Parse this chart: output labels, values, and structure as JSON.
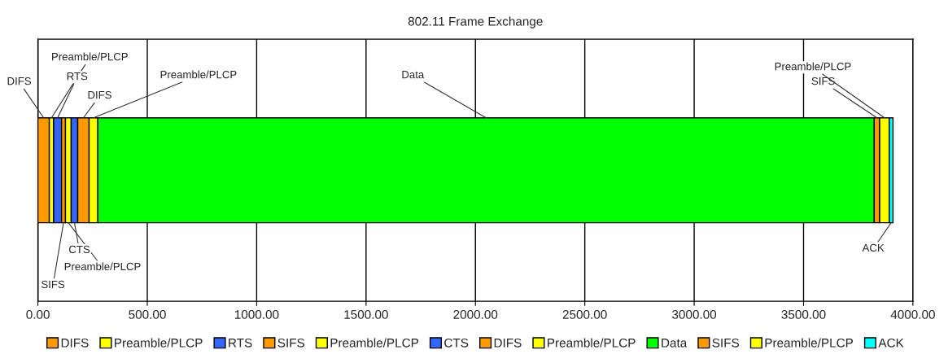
{
  "chart_data": {
    "type": "bar",
    "title": "802.11 Frame Exchange",
    "orientation": "horizontal",
    "stacked": true,
    "categories": [
      null
    ],
    "series": [
      {
        "name": "DIFS",
        "color": "#ff9900",
        "values": [
          52
        ]
      },
      {
        "name": "Preamble/PLCP",
        "color": "#ffff00",
        "values": [
          20
        ]
      },
      {
        "name": "RTS",
        "color": "#3366ff",
        "values": [
          36
        ]
      },
      {
        "name": "SIFS",
        "color": "#ff9900",
        "values": [
          18
        ]
      },
      {
        "name": "Preamble/PLCP",
        "color": "#ffff00",
        "values": [
          26
        ]
      },
      {
        "name": "CTS",
        "color": "#3366ff",
        "values": [
          30
        ]
      },
      {
        "name": "DIFS",
        "color": "#ff9900",
        "values": [
          52
        ]
      },
      {
        "name": "Preamble/PLCP",
        "color": "#ffff00",
        "values": [
          40
        ]
      },
      {
        "name": "Data",
        "color": "#00ff00",
        "values": [
          3549
        ]
      },
      {
        "name": "SIFS",
        "color": "#ff9900",
        "values": [
          25
        ]
      },
      {
        "name": "Preamble/PLCP",
        "color": "#ffff00",
        "values": [
          44
        ]
      },
      {
        "name": "ACK",
        "color": "#00ffff",
        "values": [
          17
        ]
      }
    ],
    "xlim": [
      0,
      4000
    ],
    "xticks": [
      {
        "value": 0,
        "label": "0.00"
      },
      {
        "value": 500,
        "label": "500.00"
      },
      {
        "value": 1000,
        "label": "1000.00"
      },
      {
        "value": 1500,
        "label": "1500.00"
      },
      {
        "value": 2000,
        "label": "2000.00"
      },
      {
        "value": 2500,
        "label": "2500.00"
      },
      {
        "value": 3000,
        "label": "3000.00"
      },
      {
        "value": 3500,
        "label": "3500.00"
      },
      {
        "value": 4000,
        "label": "4000.00"
      }
    ],
    "grid": "x",
    "legend": "bottom",
    "annotations": [
      "DIFS",
      "Preamble/PLCP",
      "RTS",
      "SIFS",
      "Preamble/PLCP",
      "CTS",
      "DIFS",
      "Preamble/PLCP",
      "Data",
      "SIFS",
      "Preamble/PLCP",
      "ACK"
    ]
  }
}
